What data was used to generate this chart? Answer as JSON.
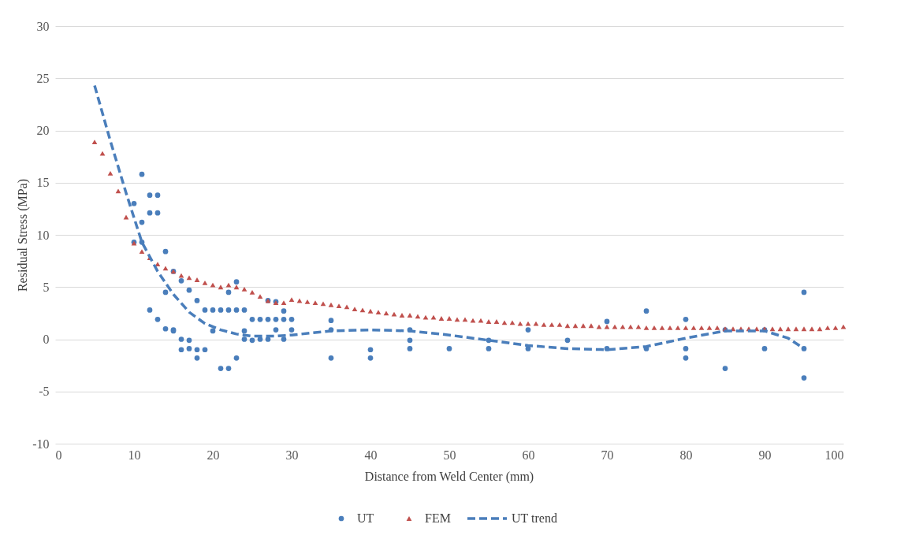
{
  "chart_data": {
    "type": "scatter",
    "xlabel": "Distance from Weld Center (mm)",
    "ylabel": "Residual Stress (MPa)",
    "xlim": [
      0,
      100
    ],
    "xticks": [
      0,
      10,
      20,
      30,
      40,
      50,
      60,
      70,
      80,
      90,
      100
    ],
    "ylim": [
      -10,
      30
    ],
    "yticks": [
      -10,
      -5,
      0,
      5,
      10,
      15,
      20,
      25,
      30
    ],
    "grid": "y",
    "legend": "bottom",
    "series": [
      {
        "name": "UT",
        "type": "scatter",
        "marker": "circle",
        "color": "#4a7ebb",
        "x": [
          10,
          11,
          11,
          10,
          11,
          12,
          13,
          12,
          13,
          14,
          15,
          12,
          13,
          14,
          15,
          15,
          14,
          16,
          17,
          18,
          16,
          17,
          16,
          17,
          18,
          18,
          19,
          19,
          20,
          21,
          22,
          23,
          24,
          20,
          21,
          22,
          23,
          22,
          23,
          24,
          24,
          25,
          25,
          26,
          27,
          28,
          29,
          30,
          26,
          27,
          29,
          27,
          28,
          29,
          28,
          30,
          35,
          35,
          35,
          40,
          40,
          45,
          45,
          45,
          50,
          55,
          55,
          60,
          60,
          65,
          70,
          70,
          75,
          75,
          80,
          80,
          80,
          85,
          85,
          90,
          90,
          95,
          95,
          95
        ],
        "values": [
          13.0,
          15.8,
          11.2,
          9.3,
          9.3,
          13.8,
          13.8,
          12.1,
          12.1,
          8.4,
          6.5,
          2.8,
          1.9,
          1.0,
          0.9,
          0.8,
          4.5,
          5.6,
          4.7,
          3.7,
          0,
          -0.1,
          -1.0,
          -0.9,
          -1.0,
          -1.8,
          -1.0,
          2.8,
          2.8,
          2.8,
          2.8,
          2.8,
          2.8,
          0.8,
          -2.8,
          -2.8,
          -1.8,
          4.5,
          5.5,
          0,
          0.8,
          -0.1,
          1.9,
          1.9,
          1.9,
          1.9,
          1.9,
          1.9,
          0,
          0,
          0,
          3.7,
          3.6,
          2.7,
          0.9,
          0.9,
          1.8,
          0.9,
          -1.8,
          -1.0,
          -1.8,
          0.9,
          -0.1,
          -0.9,
          -0.9,
          -0.9,
          -0.1,
          0.9,
          -0.9,
          -0.1,
          1.7,
          -0.9,
          2.7,
          -0.9,
          1.9,
          -0.9,
          -1.8,
          0.9,
          -2.8,
          0.9,
          -0.9,
          4.5,
          -0.9,
          -3.7
        ]
      },
      {
        "name": "FEM",
        "type": "scatter",
        "marker": "triangle",
        "color": "#c0504d",
        "x": [
          5,
          6,
          7,
          8,
          9,
          10,
          11,
          12,
          13,
          14,
          15,
          16,
          17,
          18,
          19,
          20,
          21,
          22,
          23,
          24,
          25,
          26,
          27,
          28,
          29,
          30,
          31,
          32,
          33,
          34,
          35,
          36,
          37,
          38,
          39,
          40,
          41,
          42,
          43,
          44,
          45,
          46,
          47,
          48,
          49,
          50,
          51,
          52,
          53,
          54,
          55,
          56,
          57,
          58,
          59,
          60,
          61,
          62,
          63,
          64,
          65,
          66,
          67,
          68,
          69,
          70,
          71,
          72,
          73,
          74,
          75,
          76,
          77,
          78,
          79,
          80,
          81,
          82,
          83,
          84,
          85,
          86,
          87,
          88,
          89,
          90,
          91,
          92,
          93,
          94,
          95,
          96,
          97,
          98,
          99,
          100
        ],
        "values": [
          18.9,
          17.8,
          15.9,
          14.2,
          11.7,
          9.2,
          8.4,
          7.8,
          7.2,
          6.8,
          6.5,
          6.1,
          5.9,
          5.7,
          5.4,
          5.2,
          5.0,
          5.2,
          5.0,
          4.8,
          4.5,
          4.1,
          3.7,
          3.5,
          3.5,
          3.8,
          3.7,
          3.6,
          3.5,
          3.4,
          3.3,
          3.2,
          3.1,
          2.9,
          2.8,
          2.7,
          2.6,
          2.5,
          2.4,
          2.3,
          2.3,
          2.2,
          2.1,
          2.1,
          2.0,
          2.0,
          1.9,
          1.9,
          1.8,
          1.8,
          1.7,
          1.7,
          1.6,
          1.6,
          1.5,
          1.5,
          1.5,
          1.4,
          1.4,
          1.4,
          1.3,
          1.3,
          1.3,
          1.3,
          1.2,
          1.2,
          1.2,
          1.2,
          1.2,
          1.2,
          1.1,
          1.1,
          1.1,
          1.1,
          1.1,
          1.1,
          1.1,
          1.1,
          1.1,
          1.1,
          1.0,
          1.0,
          1.0,
          1.0,
          1.0,
          1.0,
          1.0,
          1.0,
          1.0,
          1.0,
          1.0,
          1.0,
          1.0,
          1.1,
          1.1,
          1.2
        ]
      },
      {
        "name": "UT trend",
        "type": "line",
        "line_style": "dashed",
        "color": "#4a7ebb",
        "x": [
          5,
          7,
          9,
          11,
          13,
          15,
          17,
          19,
          21,
          23,
          25,
          28,
          30,
          35,
          40,
          45,
          50,
          55,
          60,
          65,
          70,
          75,
          80,
          85,
          90,
          93,
          95
        ],
        "values": [
          24.3,
          19,
          14,
          9.3,
          6.5,
          4.3,
          2.6,
          1.5,
          0.9,
          0.5,
          0.3,
          0.3,
          0.4,
          0.8,
          0.9,
          0.8,
          0.4,
          -0.1,
          -0.6,
          -0.9,
          -1.0,
          -0.7,
          0.1,
          0.8,
          0.8,
          0.1,
          -0.9
        ]
      }
    ]
  }
}
